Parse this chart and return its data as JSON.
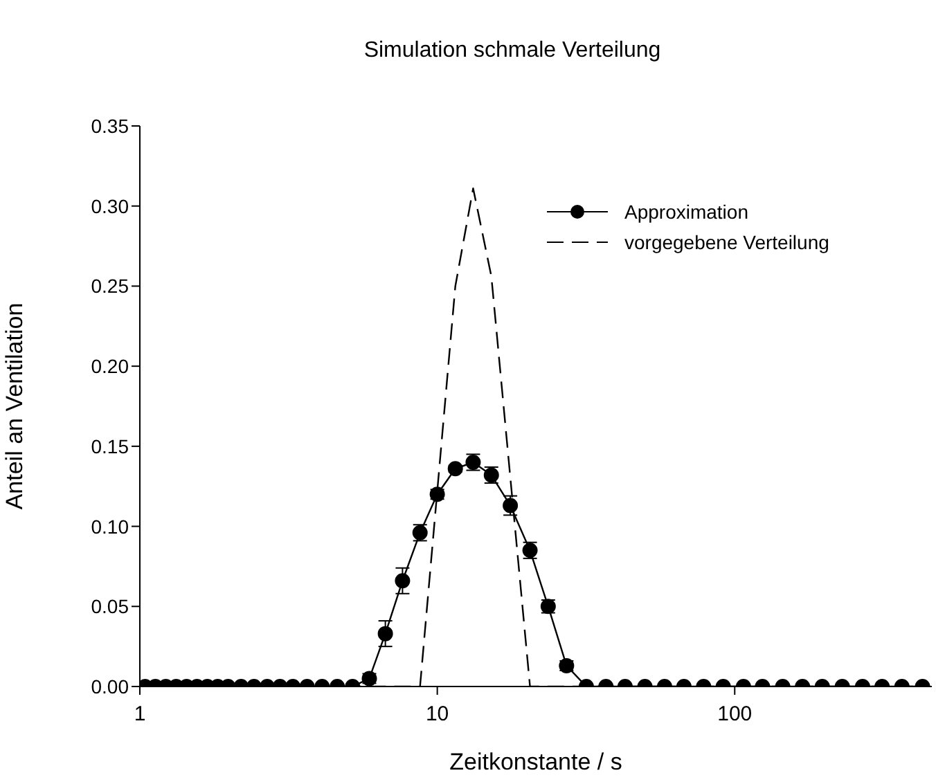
{
  "chart_data": {
    "type": "line",
    "title": "Simulation schmale Verteilung",
    "xlabel": "Zeitkonstante / s",
    "ylabel": "Anteil an Ventilation",
    "log": "x",
    "xlim": [
      1,
      460
    ],
    "xticks": [
      1,
      10,
      100
    ],
    "ylim": [
      0,
      0.35
    ],
    "yticks": [
      {
        "value": 0,
        "label": "0.00"
      },
      0.05,
      {
        "value": 0.1,
        "label": "0.10"
      },
      0.15,
      {
        "value": 0.2,
        "label": "0.20"
      },
      0.25,
      {
        "value": 0.3,
        "label": "0.30"
      },
      0.35
    ],
    "grid": false,
    "legend": "top right",
    "series": [
      {
        "name": "Approximation",
        "color": "#000000",
        "marker": "circle",
        "line_style": "solid",
        "x": [
          1.041,
          1.128,
          1.223,
          1.325,
          1.436,
          1.556,
          1.686,
          1.827,
          1.98,
          2.19,
          2.42,
          2.68,
          2.96,
          3.27,
          3.65,
          4.1,
          4.61,
          5.19,
          5.91,
          6.69,
          7.64,
          8.75,
          10.0,
          11.5,
          13.2,
          15.2,
          17.6,
          20.5,
          23.6,
          27.2,
          31.7,
          36.9,
          42.8,
          49.9,
          58.1,
          67.5,
          78.6,
          91.5,
          107,
          124,
          145,
          169,
          197,
          230,
          269,
          313,
          365,
          428
        ],
        "values": [
          0,
          0,
          0,
          0,
          0,
          0,
          0,
          0,
          0,
          0,
          0,
          0,
          0,
          0,
          0,
          0,
          0,
          0,
          0.005,
          0.033,
          0.066,
          0.096,
          0.12,
          0.136,
          0.14,
          0.132,
          0.113,
          0.085,
          0.05,
          0.013,
          0,
          0,
          0,
          0,
          0,
          0,
          0,
          0,
          0,
          0,
          0,
          0,
          0,
          0,
          0,
          0,
          0,
          0
        ],
        "errors": [
          null,
          null,
          null,
          null,
          null,
          null,
          null,
          null,
          null,
          null,
          null,
          null,
          null,
          null,
          null,
          null,
          null,
          null,
          0.003,
          0.008,
          0.008,
          0.005,
          0.003,
          0.002,
          0.005,
          0.005,
          0.006,
          0.005,
          0.004,
          0.003,
          null,
          null,
          null,
          null,
          null,
          null,
          null,
          null,
          null,
          null,
          null,
          null,
          null,
          null,
          null,
          null,
          null,
          null
        ]
      },
      {
        "name": "vorgegebene Verteilung",
        "color": "#000000",
        "marker": "none",
        "line_style": "dashed",
        "x": [
          1.041,
          8.75,
          11.5,
          13.2,
          15.2,
          20.5,
          428
        ],
        "values": [
          0,
          0,
          0.25,
          0.311,
          0.256,
          0,
          0
        ]
      }
    ]
  }
}
